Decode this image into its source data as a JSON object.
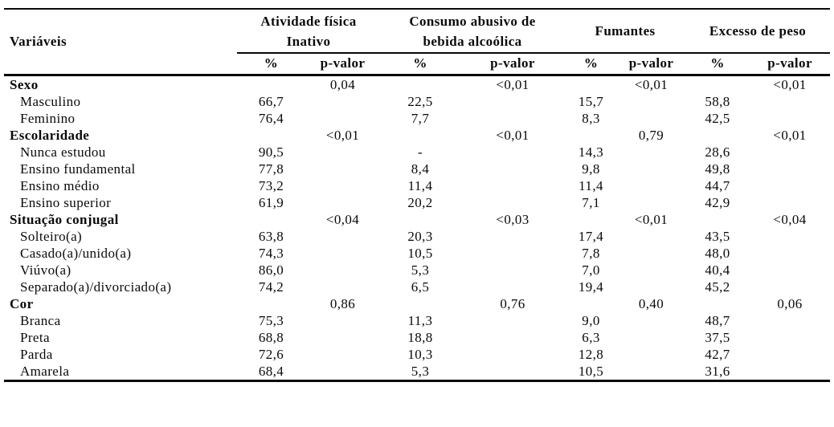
{
  "page": {
    "background_color": "#ffffff",
    "text_color": "#0a0a0a",
    "rule_color": "#0a0a0a"
  },
  "table": {
    "corner_header": "Variáveis",
    "column_groups": [
      {
        "line1": "Atividade física",
        "line2": "Inativo"
      },
      {
        "line1": "Consumo abusivo de",
        "line2": "bebida alcoólica"
      },
      {
        "line1": "Fumantes",
        "line2": ""
      },
      {
        "line1": "Excesso de peso",
        "line2": ""
      }
    ],
    "sub_headers": [
      "%",
      "p-valor",
      "%",
      "p-valor",
      "%",
      "p-valor",
      "%",
      "p-valor"
    ],
    "rows": [
      {
        "type": "section",
        "label": "Sexo",
        "cells": [
          "",
          "0,04",
          "",
          "<0,01",
          "",
          "<0,01",
          "",
          "<0,01"
        ]
      },
      {
        "type": "data",
        "label": "Masculino",
        "cells": [
          "66,7",
          "",
          "22,5",
          "",
          "15,7",
          "",
          "58,8",
          ""
        ]
      },
      {
        "type": "data",
        "label": "Feminino",
        "cells": [
          "76,4",
          "",
          "7,7",
          "",
          "8,3",
          "",
          "42,5",
          ""
        ]
      },
      {
        "type": "section",
        "label": "Escolaridade",
        "cells": [
          "",
          "<0,01",
          "",
          "<0,01",
          "",
          "0,79",
          "",
          "<0,01"
        ]
      },
      {
        "type": "data",
        "label": "Nunca estudou",
        "cells": [
          "90,5",
          "",
          "-",
          "",
          "14,3",
          "",
          "28,6",
          ""
        ]
      },
      {
        "type": "data",
        "label": "Ensino fundamental",
        "cells": [
          "77,8",
          "",
          "8,4",
          "",
          "9,8",
          "",
          "49,8",
          ""
        ]
      },
      {
        "type": "data",
        "label": "Ensino médio",
        "cells": [
          "73,2",
          "",
          "11,4",
          "",
          "11,4",
          "",
          "44,7",
          ""
        ]
      },
      {
        "type": "data",
        "label": "Ensino superior",
        "cells": [
          "61,9",
          "",
          "20,2",
          "",
          "7,1",
          "",
          "42,9",
          ""
        ]
      },
      {
        "type": "section",
        "label": "Situação conjugal",
        "cells": [
          "",
          "<0,04",
          "",
          "<0,03",
          "",
          "<0,01",
          "",
          "<0,04"
        ]
      },
      {
        "type": "data",
        "label": "Solteiro(a)",
        "cells": [
          "63,8",
          "",
          "20,3",
          "",
          "17,4",
          "",
          "43,5",
          ""
        ]
      },
      {
        "type": "data",
        "label": "Casado(a)/unido(a)",
        "cells": [
          "74,3",
          "",
          "10,5",
          "",
          "7,8",
          "",
          "48,0",
          ""
        ]
      },
      {
        "type": "data",
        "label": "Viúvo(a)",
        "cells": [
          "86,0",
          "",
          "5,3",
          "",
          "7,0",
          "",
          "40,4",
          ""
        ]
      },
      {
        "type": "data",
        "label": "Separado(a)/divorciado(a)",
        "cells": [
          "74,2",
          "",
          "6,5",
          "",
          "19,4",
          "",
          "45,2",
          ""
        ]
      },
      {
        "type": "section",
        "label": "Cor",
        "cells": [
          "",
          "0,86",
          "",
          "0,76",
          "",
          "0,40",
          "",
          "0,06"
        ]
      },
      {
        "type": "data",
        "label": "Branca",
        "cells": [
          "75,3",
          "",
          "11,3",
          "",
          "9,0",
          "",
          "48,7",
          ""
        ]
      },
      {
        "type": "data",
        "label": "Preta",
        "cells": [
          "68,8",
          "",
          "18,8",
          "",
          "6,3",
          "",
          "37,5",
          ""
        ]
      },
      {
        "type": "data",
        "label": "Parda",
        "cells": [
          "72,6",
          "",
          "10,3",
          "",
          "12,8",
          "",
          "42,7",
          ""
        ]
      },
      {
        "type": "data",
        "label": "Amarela",
        "cells": [
          "68,4",
          "",
          "5,3",
          "",
          "10,5",
          "",
          "31,6",
          ""
        ]
      }
    ]
  }
}
